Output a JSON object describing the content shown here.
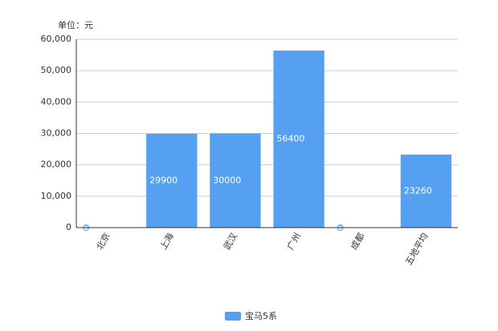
{
  "chart_data": {
    "type": "bar",
    "unit_label": "单位：元",
    "categories": [
      "北京",
      "上海",
      "武汉",
      "广州",
      "成都",
      "五地平均"
    ],
    "series": [
      {
        "name": "宝马5系",
        "color": "#56a0f1",
        "values": [
          0,
          29900,
          30000,
          56400,
          0,
          23260
        ]
      }
    ],
    "ylim": [
      0,
      60000
    ],
    "yticks": [
      0,
      {
        "value": 10000,
        "label": "10,000"
      },
      {
        "value": 20000,
        "label": "20,000"
      },
      {
        "value": 30000,
        "label": "30,000"
      },
      {
        "value": 40000,
        "label": "40,000"
      },
      {
        "value": 50000,
        "label": "50,000"
      },
      {
        "value": 60000,
        "label": "60,000"
      }
    ],
    "grid": true
  }
}
